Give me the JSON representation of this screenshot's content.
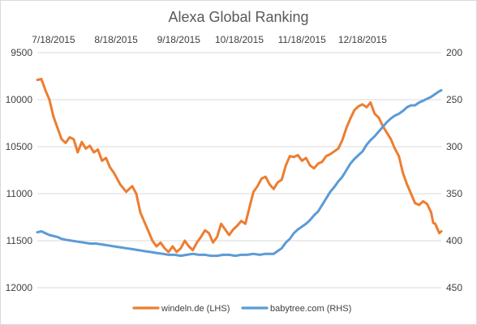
{
  "chart_data": {
    "type": "line",
    "title": "Alexa Global Ranking",
    "xlabel": "",
    "ylabel": "",
    "x_tick_labels": [
      "7/18/2015",
      "8/18/2015",
      "9/18/2015",
      "10/18/2015",
      "11/18/2015",
      "12/18/2015"
    ],
    "x_tick_dates": [
      "2015-07-18",
      "2015-08-18",
      "2015-09-18",
      "2015-10-18",
      "2015-11-18",
      "2015-12-18"
    ],
    "xlim": [
      "2015-07-10",
      "2016-01-26"
    ],
    "left_axis": {
      "reversed": true,
      "ylim": [
        9500,
        12000
      ],
      "tick_labels": [
        "9500",
        "10000",
        "10500",
        "11000",
        "11500",
        "12000"
      ],
      "tick_values": [
        9500,
        10000,
        10500,
        11000,
        11500,
        12000
      ]
    },
    "right_axis": {
      "reversed": true,
      "ylim": [
        200,
        450
      ],
      "tick_labels": [
        "200",
        "250",
        "300",
        "350",
        "400",
        "450"
      ],
      "tick_values": [
        200,
        250,
        300,
        350,
        400,
        450
      ]
    },
    "grid": true,
    "legend_position": "bottom",
    "series": [
      {
        "name": "windeln.de (LHS)",
        "axis": "left",
        "color": "#ed7d31",
        "points": [
          [
            "2015-07-10",
            9790
          ],
          [
            "2015-07-12",
            9780
          ],
          [
            "2015-07-14",
            9900
          ],
          [
            "2015-07-16",
            10000
          ],
          [
            "2015-07-18",
            10180
          ],
          [
            "2015-07-20",
            10300
          ],
          [
            "2015-07-22",
            10420
          ],
          [
            "2015-07-24",
            10460
          ],
          [
            "2015-07-26",
            10400
          ],
          [
            "2015-07-28",
            10420
          ],
          [
            "2015-07-30",
            10560
          ],
          [
            "2015-08-01",
            10450
          ],
          [
            "2015-08-03",
            10520
          ],
          [
            "2015-08-05",
            10490
          ],
          [
            "2015-08-07",
            10560
          ],
          [
            "2015-08-09",
            10530
          ],
          [
            "2015-08-11",
            10650
          ],
          [
            "2015-08-13",
            10620
          ],
          [
            "2015-08-15",
            10720
          ],
          [
            "2015-08-17",
            10780
          ],
          [
            "2015-08-20",
            10900
          ],
          [
            "2015-08-23",
            10980
          ],
          [
            "2015-08-26",
            10920
          ],
          [
            "2015-08-28",
            11000
          ],
          [
            "2015-08-30",
            11200
          ],
          [
            "2015-09-01",
            11300
          ],
          [
            "2015-09-03",
            11400
          ],
          [
            "2015-09-05",
            11500
          ],
          [
            "2015-09-07",
            11560
          ],
          [
            "2015-09-09",
            11520
          ],
          [
            "2015-09-11",
            11580
          ],
          [
            "2015-09-13",
            11620
          ],
          [
            "2015-09-15",
            11560
          ],
          [
            "2015-09-17",
            11620
          ],
          [
            "2015-09-19",
            11580
          ],
          [
            "2015-09-21",
            11500
          ],
          [
            "2015-09-23",
            11560
          ],
          [
            "2015-09-25",
            11600
          ],
          [
            "2015-09-27",
            11520
          ],
          [
            "2015-09-29",
            11460
          ],
          [
            "2015-10-01",
            11390
          ],
          [
            "2015-10-03",
            11420
          ],
          [
            "2015-10-05",
            11520
          ],
          [
            "2015-10-07",
            11460
          ],
          [
            "2015-10-09",
            11320
          ],
          [
            "2015-10-11",
            11380
          ],
          [
            "2015-10-13",
            11440
          ],
          [
            "2015-10-15",
            11380
          ],
          [
            "2015-10-17",
            11340
          ],
          [
            "2015-10-19",
            11290
          ],
          [
            "2015-10-21",
            11320
          ],
          [
            "2015-10-23",
            11150
          ],
          [
            "2015-10-25",
            10980
          ],
          [
            "2015-10-27",
            10920
          ],
          [
            "2015-10-29",
            10840
          ],
          [
            "2015-10-31",
            10820
          ],
          [
            "2015-11-02",
            10900
          ],
          [
            "2015-11-04",
            10950
          ],
          [
            "2015-11-06",
            10880
          ],
          [
            "2015-11-08",
            10850
          ],
          [
            "2015-11-10",
            10700
          ],
          [
            "2015-11-12",
            10600
          ],
          [
            "2015-11-14",
            10610
          ],
          [
            "2015-11-16",
            10590
          ],
          [
            "2015-11-18",
            10650
          ],
          [
            "2015-11-20",
            10620
          ],
          [
            "2015-11-22",
            10700
          ],
          [
            "2015-11-24",
            10730
          ],
          [
            "2015-11-26",
            10680
          ],
          [
            "2015-11-28",
            10660
          ],
          [
            "2015-11-30",
            10600
          ],
          [
            "2015-12-02",
            10580
          ],
          [
            "2015-12-04",
            10550
          ],
          [
            "2015-12-06",
            10520
          ],
          [
            "2015-12-08",
            10430
          ],
          [
            "2015-12-10",
            10300
          ],
          [
            "2015-12-12",
            10200
          ],
          [
            "2015-12-14",
            10110
          ],
          [
            "2015-12-16",
            10070
          ],
          [
            "2015-12-18",
            10050
          ],
          [
            "2015-12-20",
            10080
          ],
          [
            "2015-12-22",
            10030
          ],
          [
            "2015-12-24",
            10150
          ],
          [
            "2015-12-26",
            10190
          ],
          [
            "2015-12-28",
            10280
          ],
          [
            "2015-12-30",
            10350
          ],
          [
            "2016-01-01",
            10420
          ],
          [
            "2016-01-03",
            10520
          ],
          [
            "2016-01-05",
            10600
          ],
          [
            "2016-01-07",
            10780
          ],
          [
            "2016-01-09",
            10900
          ],
          [
            "2016-01-11",
            11000
          ],
          [
            "2016-01-13",
            11100
          ],
          [
            "2016-01-15",
            11120
          ],
          [
            "2016-01-17",
            11080
          ],
          [
            "2016-01-19",
            11110
          ],
          [
            "2016-01-21",
            11200
          ],
          [
            "2016-01-22",
            11310
          ],
          [
            "2016-01-23",
            11320
          ],
          [
            "2016-01-24",
            11370
          ],
          [
            "2016-01-25",
            11420
          ],
          [
            "2016-01-26",
            11400
          ]
        ]
      },
      {
        "name": "babytree.com (RHS)",
        "axis": "right",
        "color": "#5b9bd5",
        "points": [
          [
            "2015-07-10",
            391
          ],
          [
            "2015-07-12",
            390
          ],
          [
            "2015-07-14",
            392
          ],
          [
            "2015-07-16",
            394
          ],
          [
            "2015-07-18",
            395
          ],
          [
            "2015-07-20",
            396
          ],
          [
            "2015-07-22",
            398
          ],
          [
            "2015-07-24",
            399
          ],
          [
            "2015-07-27",
            400
          ],
          [
            "2015-07-30",
            401
          ],
          [
            "2015-08-02",
            402
          ],
          [
            "2015-08-05",
            403
          ],
          [
            "2015-08-08",
            403
          ],
          [
            "2015-08-11",
            404
          ],
          [
            "2015-08-14",
            405
          ],
          [
            "2015-08-17",
            406
          ],
          [
            "2015-08-20",
            407
          ],
          [
            "2015-08-23",
            408
          ],
          [
            "2015-08-26",
            409
          ],
          [
            "2015-08-29",
            410
          ],
          [
            "2015-09-01",
            411
          ],
          [
            "2015-09-04",
            412
          ],
          [
            "2015-09-07",
            413
          ],
          [
            "2015-09-10",
            414
          ],
          [
            "2015-09-13",
            415
          ],
          [
            "2015-09-16",
            415
          ],
          [
            "2015-09-19",
            416
          ],
          [
            "2015-09-22",
            415
          ],
          [
            "2015-09-25",
            414
          ],
          [
            "2015-09-28",
            415
          ],
          [
            "2015-10-01",
            415
          ],
          [
            "2015-10-04",
            416
          ],
          [
            "2015-10-07",
            416
          ],
          [
            "2015-10-10",
            415
          ],
          [
            "2015-10-13",
            415
          ],
          [
            "2015-10-16",
            416
          ],
          [
            "2015-10-19",
            415
          ],
          [
            "2015-10-22",
            415
          ],
          [
            "2015-10-25",
            414
          ],
          [
            "2015-10-28",
            415
          ],
          [
            "2015-10-31",
            414
          ],
          [
            "2015-11-02",
            414
          ],
          [
            "2015-11-04",
            414
          ],
          [
            "2015-11-06",
            411
          ],
          [
            "2015-11-08",
            408
          ],
          [
            "2015-11-10",
            402
          ],
          [
            "2015-11-12",
            398
          ],
          [
            "2015-11-14",
            392
          ],
          [
            "2015-11-16",
            388
          ],
          [
            "2015-11-18",
            385
          ],
          [
            "2015-11-20",
            382
          ],
          [
            "2015-11-22",
            378
          ],
          [
            "2015-11-24",
            373
          ],
          [
            "2015-11-26",
            369
          ],
          [
            "2015-11-28",
            362
          ],
          [
            "2015-11-30",
            355
          ],
          [
            "2015-12-02",
            348
          ],
          [
            "2015-12-04",
            343
          ],
          [
            "2015-12-06",
            337
          ],
          [
            "2015-12-08",
            332
          ],
          [
            "2015-12-10",
            325
          ],
          [
            "2015-12-12",
            318
          ],
          [
            "2015-12-14",
            313
          ],
          [
            "2015-12-16",
            309
          ],
          [
            "2015-12-18",
            305
          ],
          [
            "2015-12-20",
            298
          ],
          [
            "2015-12-22",
            293
          ],
          [
            "2015-12-24",
            289
          ],
          [
            "2015-12-26",
            284
          ],
          [
            "2015-12-28",
            279
          ],
          [
            "2015-12-30",
            274
          ],
          [
            "2016-01-01",
            270
          ],
          [
            "2016-01-03",
            267
          ],
          [
            "2016-01-05",
            265
          ],
          [
            "2016-01-07",
            262
          ],
          [
            "2016-01-09",
            258
          ],
          [
            "2016-01-11",
            256
          ],
          [
            "2016-01-13",
            256
          ],
          [
            "2016-01-15",
            253
          ],
          [
            "2016-01-17",
            251
          ],
          [
            "2016-01-19",
            249
          ],
          [
            "2016-01-21",
            247
          ],
          [
            "2016-01-23",
            244
          ],
          [
            "2016-01-25",
            241
          ],
          [
            "2016-01-26",
            240
          ]
        ]
      }
    ]
  }
}
